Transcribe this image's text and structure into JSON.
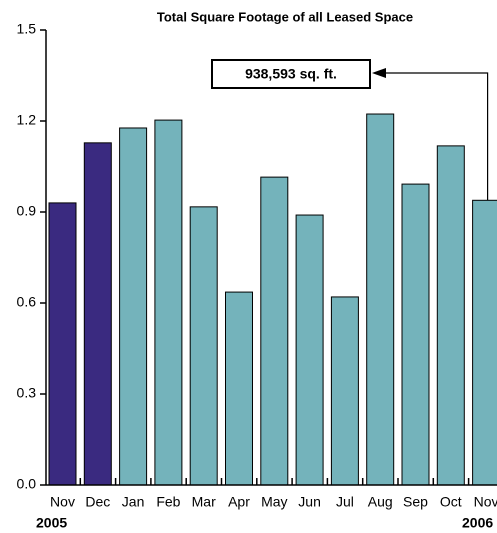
{
  "chart_data": {
    "type": "bar",
    "title": "Total Square Footage of all Leased Space",
    "categories": [
      "Nov",
      "Dec",
      "Jan",
      "Feb",
      "Mar",
      "Apr",
      "May",
      "Jun",
      "Jul",
      "Aug",
      "Sep",
      "Oct",
      "Nov"
    ],
    "values": [
      0.93,
      1.128,
      1.177,
      1.203,
      0.917,
      0.636,
      1.015,
      0.89,
      0.62,
      1.223,
      0.992,
      1.118,
      0.938593
    ],
    "colors": [
      "#3a2a80",
      "#3a2a80",
      "#74b3bb",
      "#74b3bb",
      "#74b3bb",
      "#74b3bb",
      "#74b3bb",
      "#74b3bb",
      "#74b3bb",
      "#74b3bb",
      "#74b3bb",
      "#74b3bb",
      "#74b3bb"
    ],
    "year_labels": [
      "2005",
      "2006"
    ],
    "annotation": "938,593 sq. ft.",
    "ylim": [
      0,
      1.5
    ],
    "yticks": [
      {
        "value": 0,
        "label": "0.0"
      },
      0.3,
      0.6,
      0.9,
      1.2,
      {
        "value": 1.5,
        "label": "1.5"
      }
    ]
  }
}
